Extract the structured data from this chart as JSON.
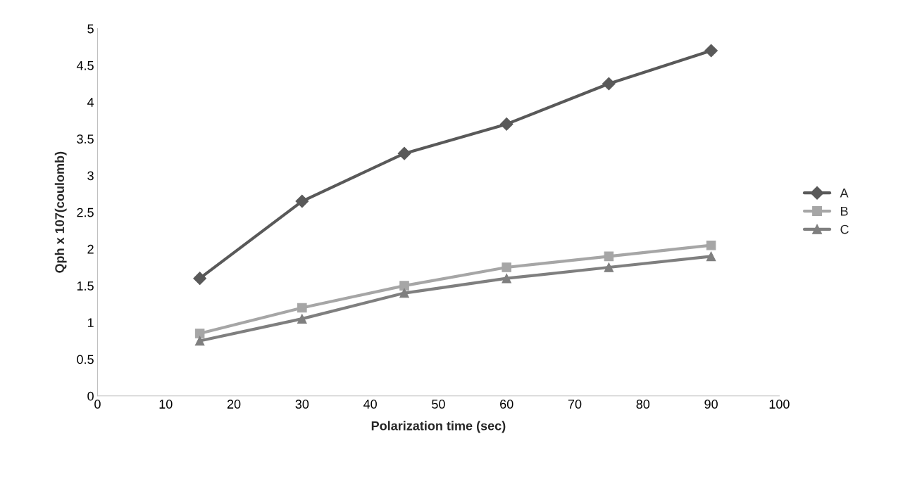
{
  "chart_data": {
    "type": "line",
    "xlabel": "Polarization time (sec)",
    "ylabel": "Qph x 107(coulomb)",
    "x": [
      15,
      30,
      45,
      60,
      75,
      90
    ],
    "series": [
      {
        "name": "A",
        "color": "#595959",
        "marker": "diamond",
        "values": [
          1.6,
          2.65,
          3.3,
          3.7,
          4.25,
          4.7
        ]
      },
      {
        "name": "B",
        "color": "#a6a6a6",
        "marker": "square",
        "values": [
          0.85,
          1.2,
          1.5,
          1.75,
          1.9,
          2.05
        ]
      },
      {
        "name": "C",
        "color": "#7f7f7f",
        "marker": "triangle",
        "values": [
          0.75,
          1.05,
          1.4,
          1.6,
          1.75,
          1.9
        ]
      }
    ],
    "xlim": [
      0,
      100
    ],
    "xticks": [
      0,
      10,
      20,
      30,
      40,
      50,
      60,
      70,
      80,
      90,
      100
    ],
    "ylim": [
      0,
      5
    ],
    "yticks": [
      0,
      0.5,
      1,
      1.5,
      2,
      2.5,
      3,
      3.5,
      4,
      4.5,
      5
    ],
    "grid": false,
    "legend": "right",
    "line_style": "solid"
  }
}
